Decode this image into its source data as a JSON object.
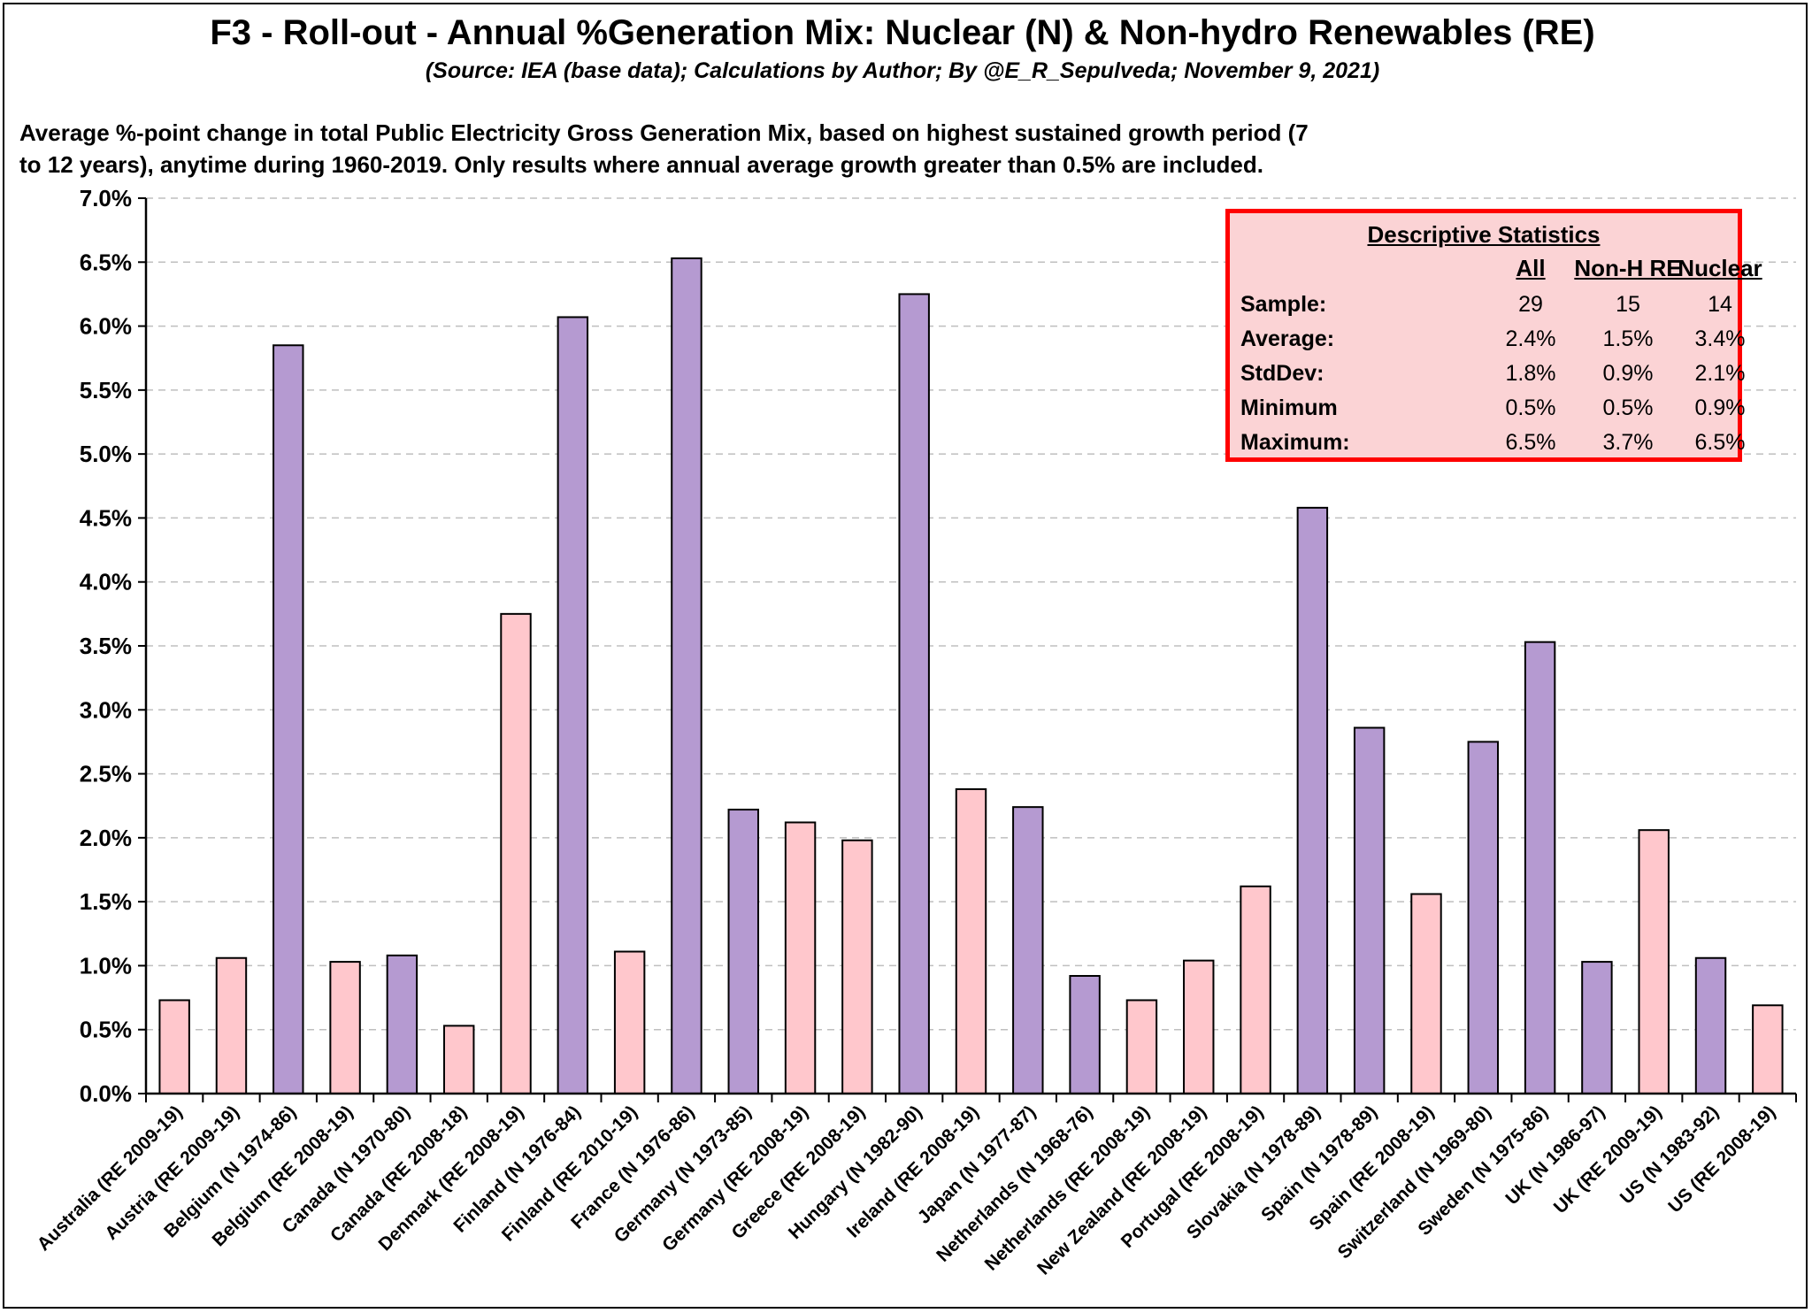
{
  "chart_data": {
    "type": "bar",
    "title": "F3 - Roll-out - Annual %Generation Mix: Nuclear (N) & Non-hydro Renewables (RE)",
    "subtitle": "(Source: IEA (base data); Calculations by Author; By @E_R_Sepulveda; November 9, 2021)",
    "description": "Average %-point change in total Public Electricity Gross Generation Mix, based on highest sustained growth period (7 to 12 years), anytime during 1960-2019. Only results where annual average growth greater than 0.5% are included.",
    "ylim": [
      0,
      7
    ],
    "yticks": [
      "0.0%",
      "0.5%",
      "1.0%",
      "1.5%",
      "2.0%",
      "2.5%",
      "3.0%",
      "3.5%",
      "4.0%",
      "4.5%",
      "5.0%",
      "5.5%",
      "6.0%",
      "6.5%",
      "7.0%"
    ],
    "grid": true,
    "colors": {
      "nuclear": "#b59ad1",
      "renewable": "#ffc7cc",
      "stroke": "#000000"
    },
    "categories": [
      "Australia (RE 2009-19)",
      "Austria (RE 2009-19)",
      "Belgium (N 1974-86)",
      "Belgium (RE 2008-19)",
      "Canada (N 1970-80)",
      "Canada (RE 2008-18)",
      "Denmark (RE 2008-19)",
      "Finland (N 1976-84)",
      "Finland (RE 2010-19)",
      "France (N 1976-86)",
      "Germany (N 1973-85)",
      "Germany (RE 2008-19)",
      "Greece (RE 2008-19)",
      "Hungary (N 1982-90)",
      "Ireland (RE 2008-19)",
      "Japan (N 1977-87)",
      "Netherlands (N 1968-76)",
      "Netherlands (RE 2008-19)",
      "New Zealand (RE 2008-19)",
      "Portugal (RE 2008-19)",
      "Slovakia (N 1978-89)",
      "Spain (N 1978-89)",
      "Spain (RE 2008-19)",
      "Switzerland (N 1969-80)",
      "Sweden (N 1975-86)",
      "UK (N 1986-97)",
      "UK (RE 2009-19)",
      "US (N 1983-92)",
      "US (RE 2008-19)"
    ],
    "values": [
      0.73,
      1.06,
      5.85,
      1.03,
      1.08,
      0.53,
      3.75,
      6.07,
      1.11,
      6.53,
      2.22,
      2.12,
      1.98,
      6.25,
      2.38,
      2.24,
      0.92,
      0.73,
      1.04,
      1.62,
      4.58,
      2.86,
      1.56,
      2.75,
      3.53,
      1.03,
      2.06,
      1.06,
      0.69
    ],
    "kinds": [
      "RE",
      "RE",
      "N",
      "RE",
      "N",
      "RE",
      "RE",
      "N",
      "RE",
      "N",
      "N",
      "RE",
      "RE",
      "N",
      "RE",
      "N",
      "N",
      "RE",
      "RE",
      "RE",
      "N",
      "N",
      "RE",
      "N",
      "N",
      "N",
      "RE",
      "N",
      "RE"
    ]
  },
  "stats": {
    "title": "Descriptive Statistics",
    "headers": [
      "All",
      "Non-H RE",
      "Nuclear"
    ],
    "rows": [
      {
        "label": "Sample:",
        "values": [
          "29",
          "15",
          "14"
        ]
      },
      {
        "label": "Average:",
        "values": [
          "2.4%",
          "1.5%",
          "3.4%"
        ]
      },
      {
        "label": "StdDev:",
        "values": [
          "1.8%",
          "0.9%",
          "2.1%"
        ]
      },
      {
        "label": "Minimum",
        "values": [
          "0.5%",
          "0.5%",
          "0.9%"
        ]
      },
      {
        "label": "Maximum:",
        "values": [
          "6.5%",
          "3.7%",
          "6.5%"
        ]
      }
    ]
  }
}
